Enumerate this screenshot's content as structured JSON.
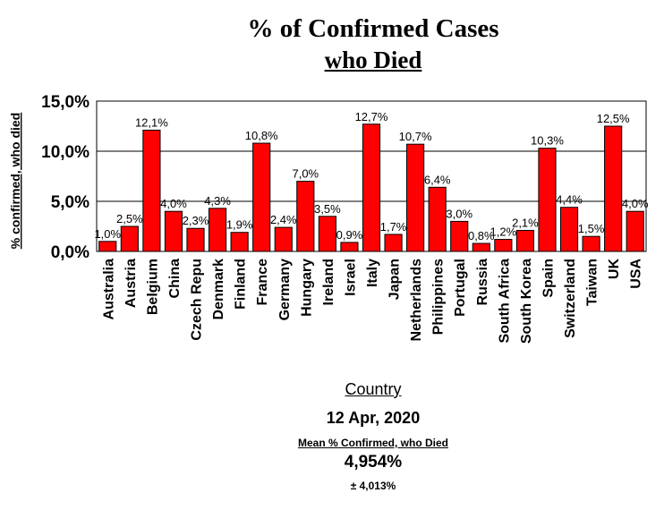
{
  "chart_data": {
    "type": "bar",
    "title": "% of Confirmed Cases",
    "subtitle": "who Died",
    "xlabel": "Country",
    "ylabel": "% confirmed, who died",
    "ylim": [
      0,
      15
    ],
    "yticks": [
      "0,0%",
      "5,0%",
      "10,0%",
      "15,0%"
    ],
    "grid": true,
    "bar_color": "#ff0000",
    "categories": [
      "Australia",
      "Austria",
      "Belgium",
      "China",
      "Czech Repu",
      "Denmark",
      "Finland",
      "France",
      "Germany",
      "Hungary",
      "Ireland",
      "Israel",
      "Italy",
      "Japan",
      "Netherlands",
      "Philippines",
      "Portugal",
      "Russia",
      "South Africa",
      "South Korea",
      "Spain",
      "Switzerland",
      "Taiwan",
      "UK",
      "USA"
    ],
    "values": [
      1.0,
      2.5,
      12.1,
      4.0,
      2.3,
      4.3,
      1.9,
      10.8,
      2.4,
      7.0,
      3.5,
      0.9,
      12.7,
      1.7,
      10.7,
      6.4,
      3.0,
      0.8,
      1.2,
      2.1,
      10.3,
      4.4,
      1.5,
      12.5,
      4.0
    ],
    "value_labels": [
      "1,0%",
      "2,5%",
      "12,1%",
      "4,0%",
      "2,3%",
      "4,3%",
      "1,9%",
      "10,8%",
      "2,4%",
      "7,0%",
      "3,5%",
      "0,9%",
      "12,7%",
      "1,7%",
      "10,7%",
      "6,4%",
      "3,0%",
      "0,8%",
      "1,2%",
      "2,1%",
      "10,3%",
      "4,4%",
      "1,5%",
      "12,5%",
      "4,0%"
    ]
  },
  "footer": {
    "date": "12 Apr, 2020",
    "mean_label": "Mean % Confirmed, who Died",
    "mean_value": "4,954%",
    "sd_value": "± 4,013%"
  }
}
